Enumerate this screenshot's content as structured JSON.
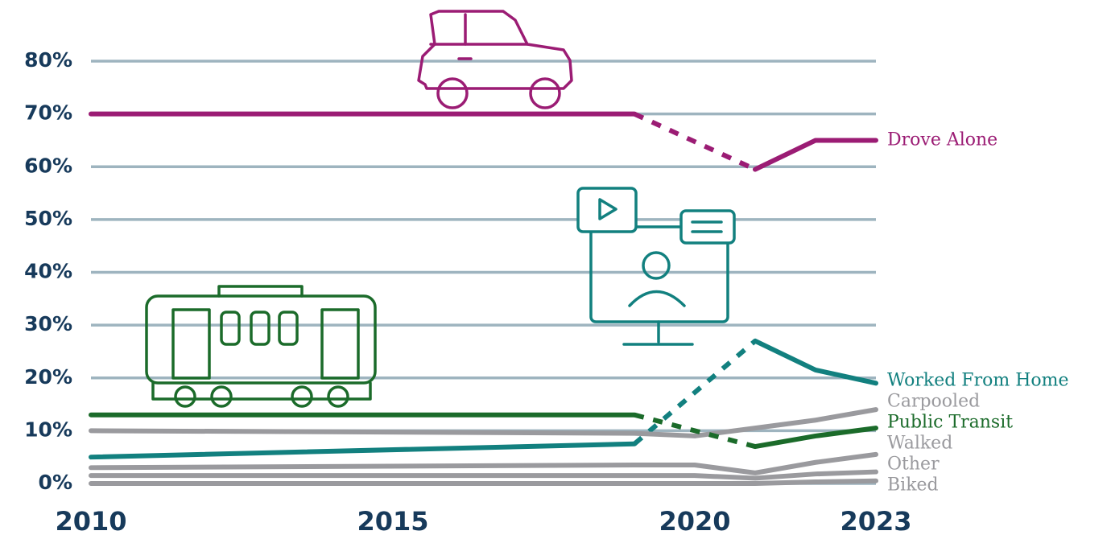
{
  "chart_data": {
    "type": "line",
    "x": [
      2010,
      2019,
      2020,
      2021,
      2022,
      2023
    ],
    "xlim": [
      2010,
      2023
    ],
    "xticks": [
      2010,
      2015,
      2020,
      2023
    ],
    "ylim": [
      0,
      80
    ],
    "yticks": [
      {
        "value": 0,
        "label": "0%"
      },
      {
        "value": 10,
        "label": "10%"
      },
      {
        "value": 20,
        "label": "20%"
      },
      {
        "value": 30,
        "label": "30%"
      },
      {
        "value": 40,
        "label": "40%"
      },
      {
        "value": 50,
        "label": "50%"
      },
      {
        "value": 60,
        "label": "60%"
      },
      {
        "value": 70,
        "label": "70%"
      },
      {
        "value": 80,
        "label": "80%"
      }
    ],
    "grid": true,
    "gap_style": "dashed",
    "series": [
      {
        "name": "Drove Alone",
        "color": "#9b1c74",
        "values": [
          70,
          70,
          null,
          59.5,
          65,
          65
        ]
      },
      {
        "name": "Worked From Home",
        "color": "#12807f",
        "values": [
          5,
          7.5,
          null,
          27,
          21.5,
          19
        ]
      },
      {
        "name": "Carpooled",
        "color": "#9a9a9e",
        "values": [
          10,
          9.5,
          9,
          10.5,
          12,
          14
        ]
      },
      {
        "name": "Public Transit",
        "color": "#1b6b2a",
        "values": [
          13,
          13,
          null,
          7,
          9,
          10.5
        ]
      },
      {
        "name": "Walked",
        "color": "#9a9a9e",
        "values": [
          3,
          3.5,
          3.5,
          2,
          4,
          5.5
        ]
      },
      {
        "name": "Other",
        "color": "#9a9a9e",
        "values": [
          1.5,
          1.5,
          1.5,
          1,
          1.8,
          2.2
        ]
      },
      {
        "name": "Biked",
        "color": "#9a9a9e",
        "values": [
          0,
          0,
          0,
          0,
          0.3,
          0.5
        ]
      }
    ]
  }
}
